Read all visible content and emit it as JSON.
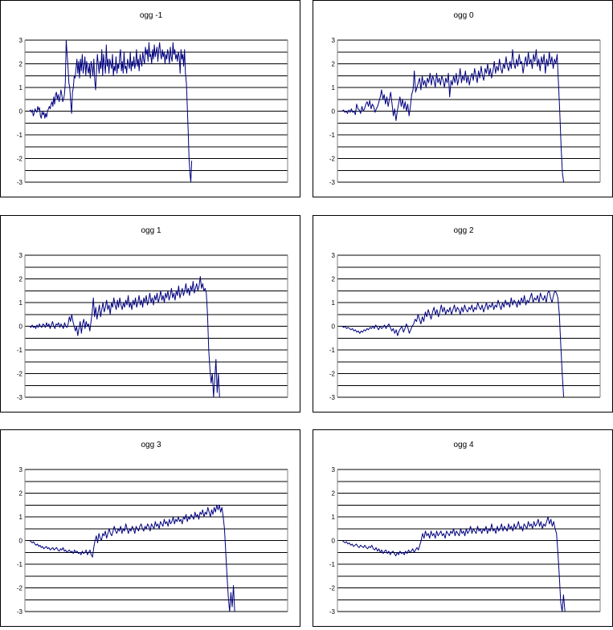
{
  "chart_data": [
    {
      "type": "line",
      "title": "ogg -1",
      "ylim": [
        -3,
        3
      ],
      "y_ticks": [
        "3",
        "2",
        "1",
        "0",
        "-1",
        "-2",
        "-3"
      ],
      "grid": true,
      "line_color": "#000080",
      "series": [
        {
          "values": [
            0.0,
            0.05,
            -0.05,
            0.05,
            -0.2,
            -0.1,
            0.1,
            0.0,
            -0.05,
            0.2,
            0.05,
            0.15,
            -0.2,
            -0.3,
            0.0,
            -0.15,
            -0.05,
            -0.3,
            -0.1,
            -0.25,
            0.0,
            0.1,
            0.2,
            0.1,
            0.3,
            0.4,
            0.2,
            0.6,
            0.3,
            0.7,
            0.8,
            0.5,
            0.7,
            0.4,
            0.6,
            0.9,
            0.7,
            0.4,
            0.5,
            0.7,
            1.2,
            3.0,
            2.4,
            1.9,
            1.2,
            1.0,
            0.4,
            -0.1,
            0.8,
            1.0,
            1.5,
            1.4,
            1.8,
            2.2,
            1.6,
            2.1,
            1.4,
            2.2,
            1.7,
            2.4,
            1.6,
            1.9,
            2.3,
            1.5,
            2.1,
            1.8,
            1.6,
            2.0,
            1.4,
            2.1,
            1.9,
            1.5,
            2.2,
            1.3,
            0.9,
            1.7,
            2.4,
            2.0,
            1.6,
            2.1,
            1.8,
            2.6,
            1.5,
            2.4,
            2.0,
            1.6,
            2.8,
            1.9,
            2.2,
            1.6,
            2.2,
            2.0,
            1.8,
            2.4,
            1.5,
            1.9,
            1.7,
            2.3,
            1.6,
            2.0,
            1.8,
            2.3,
            2.6,
            1.7,
            2.1,
            1.6,
            2.5,
            1.8,
            1.9,
            1.6,
            2.2,
            2.0,
            1.8,
            2.5,
            1.7,
            2.1,
            1.9,
            2.3,
            1.8,
            2.0,
            2.6,
            1.9,
            2.2,
            1.7,
            2.4,
            2.1,
            1.9,
            2.5,
            2.2,
            2.0,
            2.7,
            2.4,
            2.6,
            2.1,
            2.9,
            2.3,
            2.4,
            2.0,
            2.6,
            2.2,
            2.8,
            2.3,
            2.5,
            2.7,
            2.1,
            2.6,
            2.9,
            2.4,
            2.2,
            2.6,
            2.3,
            2.5,
            2.0,
            2.4,
            2.2,
            2.6,
            2.4,
            2.0,
            2.7,
            2.3,
            2.1,
            2.9,
            2.4,
            2.6,
            2.2,
            2.4,
            2.1,
            2.5,
            2.3,
            1.6,
            2.6,
            2.2,
            2.4,
            1.9,
            2.6,
            1.6,
            1.2,
            0.2,
            -0.8,
            -2.0,
            -2.6,
            -3.0,
            -2.1
          ]
        }
      ]
    },
    {
      "type": "line",
      "title": "ogg 0",
      "ylim": [
        -3,
        3
      ],
      "y_ticks": [
        "3",
        "2",
        "1",
        "0",
        "-1",
        "-2",
        "-3"
      ],
      "grid": true,
      "line_color": "#000080",
      "series": [
        {
          "values": [
            0.0,
            0.05,
            -0.05,
            0.0,
            -0.1,
            0.05,
            -0.05,
            0.1,
            -0.05,
            0.0,
            -0.15,
            0.3,
            0.1,
            0.05,
            -0.1,
            0.2,
            0.0,
            0.1,
            0.3,
            0.4,
            0.2,
            0.45,
            0.1,
            0.3,
            0.2,
            -0.05,
            0.1,
            0.2,
            0.4,
            0.6,
            0.9,
            0.5,
            0.7,
            0.3,
            0.6,
            0.2,
            0.5,
            0.8,
            0.3,
            -0.2,
            0.1,
            -0.4,
            0.0,
            0.3,
            0.6,
            0.2,
            0.5,
            0.1,
            0.4,
            0.0,
            0.3,
            -0.2,
            0.2,
            0.7,
            0.9,
            1.7,
            0.8,
            1.0,
            1.2,
            1.4,
            0.9,
            1.5,
            1.1,
            1.3,
            1.0,
            1.4,
            1.2,
            1.6,
            1.1,
            1.5,
            1.3,
            1.0,
            1.6,
            1.2,
            1.4,
            1.1,
            1.5,
            1.3,
            1.0,
            1.4,
            1.2,
            1.6,
            0.6,
            1.3,
            1.1,
            1.5,
            1.2,
            1.6,
            1.1,
            1.4,
            1.8,
            1.2,
            1.5,
            1.3,
            1.7,
            1.2,
            1.5,
            1.1,
            1.4,
            1.6,
            1.3,
            1.8,
            1.5,
            1.2,
            1.7,
            1.4,
            1.9,
            1.5,
            1.3,
            1.8,
            1.6,
            2.0,
            1.5,
            1.8,
            1.4,
            1.7,
            2.1,
            1.6,
            1.9,
            1.7,
            2.2,
            1.8,
            1.6,
            2.0,
            1.8,
            2.3,
            1.9,
            1.7,
            2.1,
            1.8,
            2.6,
            2.0,
            1.8,
            2.2,
            1.9,
            2.4,
            2.0,
            2.1,
            1.6,
            2.0,
            2.3,
            1.9,
            2.5,
            2.0,
            2.2,
            1.8,
            2.4,
            2.1,
            2.6,
            1.9,
            2.2,
            1.7,
            2.3,
            2.0,
            2.4,
            1.6,
            2.2,
            1.9,
            2.5,
            2.0,
            2.3,
            1.8,
            2.2,
            2.0,
            2.4,
            1.2,
            0.0,
            -1.5,
            -2.6,
            -3.0
          ]
        }
      ]
    },
    {
      "type": "line",
      "title": "ogg 1",
      "ylim": [
        -3,
        3
      ],
      "y_ticks": [
        "3",
        "2",
        "1",
        "0",
        "-1",
        "-2",
        "-3"
      ],
      "grid": true,
      "line_color": "#000080",
      "series": [
        {
          "values": [
            0.0,
            -0.05,
            0.05,
            -0.05,
            0.0,
            -0.1,
            0.05,
            -0.05,
            0.1,
            0.0,
            -0.05,
            0.1,
            0.05,
            -0.05,
            0.15,
            0.0,
            0.1,
            -0.1,
            0.05,
            0.2,
            0.0,
            -0.1,
            0.1,
            0.05,
            0.15,
            -0.05,
            0.1,
            0.0,
            -0.1,
            0.15,
            0.0,
            -0.05,
            0.1,
            0.4,
            0.2,
            0.5,
            0.2,
            0.0,
            -0.2,
            0.0,
            -0.4,
            -0.1,
            0.2,
            -0.3,
            0.1,
            0.3,
            -0.1,
            0.2,
            0.0,
            0.1,
            -0.2,
            0.2,
            0.6,
            1.2,
            0.4,
            0.8,
            0.3,
            0.6,
            0.9,
            0.4,
            0.7,
            1.0,
            0.6,
            0.8,
            1.1,
            0.7,
            0.9,
            0.5,
            1.0,
            0.8,
            1.2,
            0.9,
            0.7,
            1.1,
            0.8,
            1.2,
            0.9,
            0.7,
            1.0,
            0.8,
            1.1,
            0.9,
            1.3,
            0.8,
            1.0,
            0.7,
            1.1,
            0.9,
            1.2,
            0.8,
            1.0,
            1.3,
            0.9,
            1.1,
            0.8,
            1.2,
            1.0,
            1.3,
            0.9,
            1.1,
            1.4,
            1.0,
            1.2,
            0.9,
            1.3,
            1.1,
            1.4,
            1.0,
            1.2,
            1.5,
            1.1,
            1.3,
            1.0,
            1.4,
            1.2,
            1.5,
            1.1,
            1.3,
            1.6,
            1.2,
            1.4,
            1.1,
            1.5,
            1.3,
            1.7,
            1.2,
            1.4,
            1.6,
            1.3,
            1.5,
            1.8,
            1.4,
            1.6,
            1.3,
            1.7,
            1.5,
            1.9,
            1.4,
            1.6,
            1.8,
            1.5,
            1.7,
            2.1,
            1.6,
            1.8,
            1.5,
            1.6,
            1.4,
            0.5,
            -1.0,
            -1.8,
            -2.4,
            -2.0,
            -3.0,
            -2.2,
            -1.4,
            -2.8,
            -2.0,
            -3.0
          ]
        }
      ]
    },
    {
      "type": "line",
      "title": "ogg 2",
      "ylim": [
        -3,
        3
      ],
      "y_ticks": [
        "3",
        "2",
        "1",
        "0",
        "-1",
        "-2",
        "-3"
      ],
      "grid": true,
      "line_color": "#000080",
      "series": [
        {
          "values": [
            0.0,
            -0.05,
            0.0,
            -0.1,
            -0.05,
            -0.1,
            -0.15,
            -0.1,
            -0.2,
            -0.15,
            -0.25,
            -0.2,
            -0.3,
            -0.2,
            -0.25,
            -0.15,
            -0.2,
            -0.1,
            -0.15,
            -0.05,
            -0.1,
            0.0,
            -0.1,
            0.05,
            -0.05,
            -0.15,
            0.0,
            -0.1,
            -0.05,
            0.05,
            -0.1,
            0.0,
            0.1,
            -0.05,
            -0.2,
            -0.1,
            -0.3,
            -0.15,
            -0.4,
            -0.2,
            -0.1,
            0.0,
            -0.25,
            -0.1,
            0.1,
            -0.05,
            -0.3,
            -0.15,
            0.0,
            0.1,
            0.3,
            0.2,
            0.5,
            0.3,
            0.1,
            0.4,
            0.2,
            0.6,
            0.4,
            0.7,
            0.5,
            0.3,
            0.6,
            0.8,
            0.5,
            0.7,
            0.4,
            0.6,
            0.9,
            0.6,
            0.8,
            0.5,
            0.7,
            0.6,
            0.8,
            0.5,
            0.7,
            0.9,
            0.6,
            0.8,
            0.7,
            0.5,
            0.8,
            0.6,
            0.9,
            0.7,
            0.6,
            0.8,
            0.7,
            0.9,
            0.6,
            0.8,
            0.7,
            1.0,
            0.8,
            0.7,
            0.9,
            0.6,
            0.8,
            1.0,
            0.7,
            0.9,
            0.8,
            1.0,
            0.7,
            0.9,
            0.8,
            1.1,
            0.9,
            0.7,
            1.0,
            0.8,
            1.1,
            0.9,
            1.0,
            0.8,
            1.2,
            0.9,
            1.1,
            1.0,
            0.8,
            1.1,
            0.9,
            1.2,
            1.0,
            1.3,
            0.9,
            1.1,
            1.0,
            1.2,
            1.4,
            1.0,
            1.2,
            1.1,
            1.3,
            1.0,
            1.4,
            1.2,
            1.1,
            1.3,
            1.0,
            1.4,
            1.5,
            1.2,
            1.0,
            1.3,
            1.5,
            1.4,
            1.2,
            0.5,
            -0.8,
            -2.0,
            -3.0
          ]
        }
      ]
    },
    {
      "type": "line",
      "title": "ogg 3",
      "ylim": [
        -3,
        3
      ],
      "y_ticks": [
        "3",
        "2",
        "1",
        "0",
        "-1",
        "-2",
        "-3"
      ],
      "grid": true,
      "line_color": "#000080",
      "series": [
        {
          "values": [
            0.0,
            -0.05,
            -0.1,
            -0.05,
            -0.15,
            -0.2,
            -0.15,
            -0.25,
            -0.2,
            -0.3,
            -0.25,
            -0.35,
            -0.3,
            -0.25,
            -0.35,
            -0.3,
            -0.4,
            -0.35,
            -0.3,
            -0.4,
            -0.35,
            -0.3,
            -0.4,
            -0.45,
            -0.35,
            -0.4,
            -0.3,
            -0.45,
            -0.4,
            -0.5,
            -0.45,
            -0.4,
            -0.5,
            -0.45,
            -0.55,
            -0.4,
            -0.5,
            -0.45,
            -0.55,
            -0.5,
            -0.6,
            -0.45,
            -0.55,
            -0.5,
            -0.4,
            -0.6,
            -0.5,
            -0.4,
            -0.6,
            -0.7,
            -0.3,
            0.0,
            0.2,
            -0.1,
            0.3,
            0.1,
            0.0,
            0.3,
            0.2,
            0.4,
            0.1,
            0.3,
            0.5,
            0.3,
            0.2,
            0.4,
            0.6,
            0.4,
            0.3,
            0.5,
            0.4,
            0.6,
            0.3,
            0.5,
            0.4,
            0.7,
            0.5,
            0.3,
            0.5,
            0.4,
            0.6,
            0.5,
            0.3,
            0.6,
            0.5,
            0.4,
            0.6,
            0.7,
            0.5,
            0.4,
            0.6,
            0.5,
            0.7,
            0.6,
            0.4,
            0.7,
            0.6,
            0.5,
            0.8,
            0.6,
            0.7,
            0.5,
            0.8,
            0.7,
            0.6,
            0.9,
            0.7,
            0.8,
            0.6,
            0.9,
            0.7,
            0.8,
            1.0,
            0.7,
            0.9,
            0.8,
            1.0,
            0.8,
            0.9,
            0.7,
            1.0,
            0.9,
            1.1,
            0.8,
            1.0,
            0.9,
            1.1,
            1.0,
            0.9,
            1.2,
            1.0,
            1.1,
            0.9,
            1.2,
            1.1,
            1.3,
            1.0,
            1.2,
            1.1,
            1.4,
            1.2,
            1.0,
            1.3,
            1.1,
            1.4,
            1.2,
            1.5,
            1.3,
            1.5,
            1.2,
            1.4,
            1.0,
            0.5,
            -0.5,
            -1.5,
            -2.4,
            -3.0,
            -2.2,
            -2.8,
            -1.9,
            -3.0
          ]
        }
      ]
    },
    {
      "type": "line",
      "title": "ogg 4",
      "ylim": [
        -3,
        3
      ],
      "y_ticks": [
        "3",
        "2",
        "1",
        "0",
        "-1",
        "-2",
        "-3"
      ],
      "grid": true,
      "line_color": "#000080",
      "series": [
        {
          "values": [
            0.0,
            -0.05,
            -0.1,
            -0.05,
            -0.15,
            -0.1,
            -0.2,
            -0.15,
            -0.25,
            -0.2,
            -0.15,
            -0.25,
            -0.3,
            -0.2,
            -0.25,
            -0.3,
            -0.2,
            -0.3,
            -0.35,
            -0.25,
            -0.3,
            -0.2,
            -0.35,
            -0.4,
            -0.3,
            -0.45,
            -0.35,
            -0.5,
            -0.4,
            -0.55,
            -0.45,
            -0.4,
            -0.55,
            -0.45,
            -0.6,
            -0.5,
            -0.45,
            -0.55,
            -0.65,
            -0.5,
            -0.6,
            -0.45,
            -0.55,
            -0.5,
            -0.6,
            -0.45,
            -0.55,
            -0.4,
            -0.5,
            -0.45,
            -0.35,
            -0.5,
            -0.4,
            -0.3,
            -0.4,
            -0.2,
            0.0,
            0.3,
            0.1,
            0.4,
            0.2,
            0.3,
            0.1,
            0.4,
            0.2,
            0.3,
            0.1,
            0.4,
            0.2,
            0.3,
            0.4,
            0.2,
            0.3,
            0.1,
            0.4,
            0.3,
            0.2,
            0.4,
            0.3,
            0.5,
            0.2,
            0.4,
            0.3,
            0.2,
            0.5,
            0.3,
            0.4,
            0.2,
            0.5,
            0.3,
            0.4,
            0.6,
            0.3,
            0.5,
            0.4,
            0.3,
            0.6,
            0.4,
            0.5,
            0.3,
            0.5,
            0.4,
            0.6,
            0.3,
            0.5,
            0.4,
            0.7,
            0.4,
            0.5,
            0.3,
            0.6,
            0.4,
            0.5,
            0.7,
            0.4,
            0.6,
            0.5,
            0.4,
            0.7,
            0.5,
            0.6,
            0.4,
            0.7,
            0.5,
            0.6,
            0.8,
            0.5,
            0.6,
            0.4,
            0.7,
            0.6,
            0.5,
            0.8,
            0.6,
            0.7,
            0.5,
            0.8,
            0.6,
            0.7,
            0.9,
            0.6,
            0.8,
            0.5,
            0.7,
            0.6,
            0.8,
            1.0,
            0.7,
            0.9,
            0.6,
            0.8,
            0.5,
            0.3,
            -0.5,
            -1.5,
            -2.6,
            -3.0,
            -2.3,
            -3.0
          ]
        }
      ]
    }
  ]
}
